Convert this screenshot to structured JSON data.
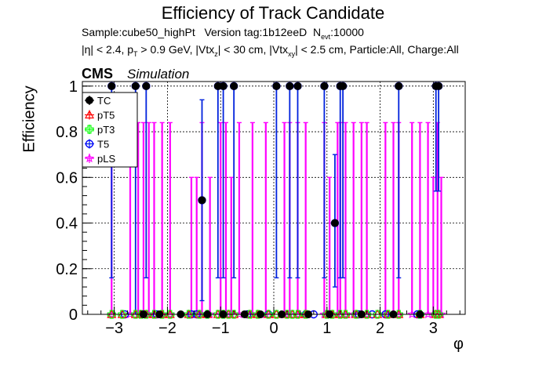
{
  "title": "Efficiency of Track Candidate",
  "subtitle_1": {
    "sample": "Sample:cube50_highPt",
    "version": "Version tag:1b12eeD",
    "nevt_prefix": "N",
    "nevt_sub": "evt",
    "nevt_value": ":10000"
  },
  "subtitle_2": {
    "eta": "|η| < 2.4, p",
    "pt_sub": "T",
    "pt_rest": " > 0.9 GeV, |Vtx",
    "z_sub": "z",
    "z_rest": "| < 30 cm, |Vtx",
    "xy_sub": "xy",
    "xy_rest": "| < 2.5 cm, Particle:All, Charge:All"
  },
  "cms_label": "CMS",
  "simulation_label": "Simulation",
  "colors": {
    "TC": "#000000",
    "pT5": "#ff0000",
    "pT3": "#00ff00",
    "T5": "#0000ff",
    "pLS": "#ff00ff",
    "T5_line": "#0022dd",
    "pLS_line": "#ff00ff"
  },
  "chart_data": {
    "type": "scatter",
    "title": "Efficiency of Track Candidate",
    "xlabel": "φ",
    "ylabel": "Efficiency",
    "xlim": [
      -3.6,
      3.6
    ],
    "ylim": [
      0,
      1.02
    ],
    "grid": true,
    "legend_position": "top-left",
    "xticks": [
      -3,
      -2,
      -1,
      0,
      1,
      2,
      3
    ],
    "xtick_labels": [
      "−3",
      "−2",
      "−1",
      "0",
      "1",
      "2",
      "3"
    ],
    "yticks": [
      0,
      0.2,
      0.4,
      0.6,
      0.8,
      1
    ],
    "ytick_labels": [
      "0",
      "0.2",
      "0.4",
      "0.6",
      "0.8",
      "1"
    ],
    "series": [
      {
        "name": "TC",
        "marker": "circle-filled",
        "points": [
          {
            "x": -3.05,
            "y": 1,
            "lo": 1,
            "hi": 1
          },
          {
            "x": -2.6,
            "y": 1,
            "lo": 1,
            "hi": 1
          },
          {
            "x": -2.4,
            "y": 1,
            "lo": 1,
            "hi": 1
          },
          {
            "x": -1.35,
            "y": 0.5,
            "lo": 0.5,
            "hi": 0.5
          },
          {
            "x": -1.05,
            "y": 1,
            "lo": 1,
            "hi": 1
          },
          {
            "x": -0.95,
            "y": 1,
            "lo": 1,
            "hi": 1
          },
          {
            "x": -0.75,
            "y": 1,
            "lo": 1,
            "hi": 1
          },
          {
            "x": 0.05,
            "y": 1,
            "lo": 1,
            "hi": 1
          },
          {
            "x": 0.3,
            "y": 1,
            "lo": 1,
            "hi": 1
          },
          {
            "x": 0.45,
            "y": 1,
            "lo": 1,
            "hi": 1
          },
          {
            "x": 0.95,
            "y": 1,
            "lo": 1,
            "hi": 1
          },
          {
            "x": 1.15,
            "y": 0.4,
            "lo": 0.4,
            "hi": 0.4
          },
          {
            "x": 1.25,
            "y": 1,
            "lo": 1,
            "hi": 1
          },
          {
            "x": 1.3,
            "y": 1,
            "lo": 1,
            "hi": 1
          },
          {
            "x": 2.35,
            "y": 1,
            "lo": 1,
            "hi": 1
          },
          {
            "x": 3.05,
            "y": 1,
            "lo": 1,
            "hi": 1
          },
          {
            "x": 3.1,
            "y": 1,
            "lo": 1,
            "hi": 1
          }
        ],
        "zeros": [
          -2.45,
          -2.15,
          -1.75,
          -1.25,
          -0.95,
          -0.55,
          -0.25,
          0.15,
          0.65,
          1.05,
          1.65,
          2.25,
          2.75
        ]
      },
      {
        "name": "pT5",
        "marker": "triangle-open",
        "points": [],
        "zeros": [
          -3.05,
          -2.85,
          -2.6,
          -2.5,
          -2.4,
          -2.25,
          -2.1,
          -1.95,
          -1.6,
          -1.4,
          -1.25,
          -1.05,
          -0.95,
          -0.85,
          -0.75,
          -0.45,
          -0.3,
          -0.1,
          0.05,
          0.25,
          0.35,
          0.45,
          0.6,
          1.0,
          1.1,
          1.25,
          1.35,
          1.55,
          1.75,
          1.95,
          2.15,
          2.35,
          2.75,
          3.05,
          3.1
        ]
      },
      {
        "name": "pT3",
        "marker": "cross-open",
        "points": [],
        "zeros": [
          -3.05,
          -2.85,
          -2.6,
          -2.5,
          -2.4,
          -2.25,
          -2.1,
          -1.95,
          -1.6,
          -1.4,
          -1.25,
          -1.05,
          -0.95,
          -0.85,
          -0.75,
          -0.45,
          -0.3,
          -0.1,
          0.05,
          0.25,
          0.35,
          0.45,
          0.6,
          1.0,
          1.1,
          1.25,
          1.35,
          1.55,
          1.75,
          1.95,
          2.15,
          2.35,
          2.75,
          3.05,
          3.1
        ]
      },
      {
        "name": "T5",
        "marker": "circle-open",
        "points": [
          {
            "x": -3.05,
            "y": 1,
            "lo": 0.16,
            "hi": 1
          },
          {
            "x": -2.6,
            "y": 1,
            "lo": 0,
            "hi": 1
          },
          {
            "x": -2.4,
            "y": 1,
            "lo": 0.16,
            "hi": 1
          },
          {
            "x": -1.35,
            "y": 0.5,
            "lo": 0.06,
            "hi": 0.94
          },
          {
            "x": -1.05,
            "y": 1,
            "lo": 0.16,
            "hi": 1
          },
          {
            "x": -0.95,
            "y": 1,
            "lo": 0.16,
            "hi": 1
          },
          {
            "x": -0.75,
            "y": 1,
            "lo": 0.16,
            "hi": 1
          },
          {
            "x": 0.05,
            "y": 1,
            "lo": 0.16,
            "hi": 1
          },
          {
            "x": 0.3,
            "y": 1,
            "lo": 0.16,
            "hi": 1
          },
          {
            "x": 0.45,
            "y": 1,
            "lo": 0.16,
            "hi": 1
          },
          {
            "x": 0.95,
            "y": 1,
            "lo": 0.16,
            "hi": 1
          },
          {
            "x": 1.15,
            "y": 0.4,
            "lo": 0.12,
            "hi": 0.7
          },
          {
            "x": 1.25,
            "y": 1,
            "lo": 0.16,
            "hi": 1
          },
          {
            "x": 1.3,
            "y": 1,
            "lo": 0.16,
            "hi": 1
          },
          {
            "x": 2.35,
            "y": 1,
            "lo": 0.16,
            "hi": 1
          },
          {
            "x": 3.05,
            "y": 1,
            "lo": 0.54,
            "hi": 1
          },
          {
            "x": 3.1,
            "y": 1,
            "lo": 0.54,
            "hi": 1
          }
        ],
        "zeros": [
          -2.8,
          -2.2,
          -1.55,
          -1.45,
          -0.5,
          -0.1,
          0.6,
          0.75,
          1.6,
          1.85,
          2.1,
          2.7
        ]
      },
      {
        "name": "pLS",
        "marker": "star-open",
        "points": [
          {
            "x": -3.05,
            "y": 0,
            "lo": 0,
            "hi": 0.84
          },
          {
            "x": -2.7,
            "y": 0,
            "lo": 0,
            "hi": 0.84
          },
          {
            "x": -2.55,
            "y": 0,
            "lo": 0,
            "hi": 0.84
          },
          {
            "x": -2.45,
            "y": 0,
            "lo": 0,
            "hi": 0.84
          },
          {
            "x": -2.35,
            "y": 0,
            "lo": 0,
            "hi": 0.84
          },
          {
            "x": -2.25,
            "y": 0,
            "lo": 0,
            "hi": 0.84
          },
          {
            "x": -2.1,
            "y": 0,
            "lo": 0,
            "hi": 0.84
          },
          {
            "x": -1.95,
            "y": 0,
            "lo": 0,
            "hi": 0.84
          },
          {
            "x": -1.55,
            "y": 0,
            "lo": 0,
            "hi": 0.6
          },
          {
            "x": -1.45,
            "y": 0,
            "lo": 0,
            "hi": 0.6
          },
          {
            "x": -1.35,
            "y": 0,
            "lo": 0,
            "hi": 0.84
          },
          {
            "x": -1.2,
            "y": 0,
            "lo": 0,
            "hi": 0.6
          },
          {
            "x": -1.0,
            "y": 0,
            "lo": 0,
            "hi": 0.84
          },
          {
            "x": -0.9,
            "y": 0,
            "lo": 0,
            "hi": 0.84
          },
          {
            "x": -0.8,
            "y": 0,
            "lo": 0,
            "hi": 0.6
          },
          {
            "x": -0.65,
            "y": 0,
            "lo": 0,
            "hi": 0.84
          },
          {
            "x": -0.4,
            "y": 0,
            "lo": 0,
            "hi": 0.84
          },
          {
            "x": -0.15,
            "y": 0,
            "lo": 0,
            "hi": 0.84
          },
          {
            "x": 0.2,
            "y": 0,
            "lo": 0,
            "hi": 0.84
          },
          {
            "x": 0.3,
            "y": 0,
            "lo": 0,
            "hi": 0.84
          },
          {
            "x": 0.45,
            "y": 0,
            "lo": 0,
            "hi": 0.84
          },
          {
            "x": 0.6,
            "y": 0,
            "lo": 0,
            "hi": 0.84
          },
          {
            "x": 0.95,
            "y": 0,
            "lo": 0,
            "hi": 0.84
          },
          {
            "x": 1.05,
            "y": 0,
            "lo": 0,
            "hi": 0.6
          },
          {
            "x": 1.2,
            "y": 0,
            "lo": 0,
            "hi": 0.84
          },
          {
            "x": 1.25,
            "y": 0,
            "lo": 0,
            "hi": 0.84
          },
          {
            "x": 1.35,
            "y": 0,
            "lo": 0,
            "hi": 0.84
          },
          {
            "x": 1.5,
            "y": 0,
            "lo": 0,
            "hi": 0.84
          },
          {
            "x": 1.65,
            "y": 0,
            "lo": 0,
            "hi": 0.84
          },
          {
            "x": 1.75,
            "y": 0,
            "lo": 0,
            "hi": 0.84
          },
          {
            "x": 2.1,
            "y": 0,
            "lo": 0,
            "hi": 0.84
          },
          {
            "x": 2.25,
            "y": 0,
            "lo": 0,
            "hi": 0.84
          },
          {
            "x": 2.35,
            "y": 0,
            "lo": 0,
            "hi": 0.84
          },
          {
            "x": 2.6,
            "y": 0,
            "lo": 0,
            "hi": 0.84
          },
          {
            "x": 2.75,
            "y": 0,
            "lo": 0,
            "hi": 0.84
          },
          {
            "x": 2.9,
            "y": 0,
            "lo": 0,
            "hi": 0.84
          },
          {
            "x": 3.0,
            "y": 0,
            "lo": 0,
            "hi": 0.6
          },
          {
            "x": 3.08,
            "y": 0,
            "lo": 0,
            "hi": 0.84
          },
          {
            "x": 3.15,
            "y": 0,
            "lo": 0,
            "hi": 0.6
          }
        ],
        "zeros": []
      }
    ]
  }
}
